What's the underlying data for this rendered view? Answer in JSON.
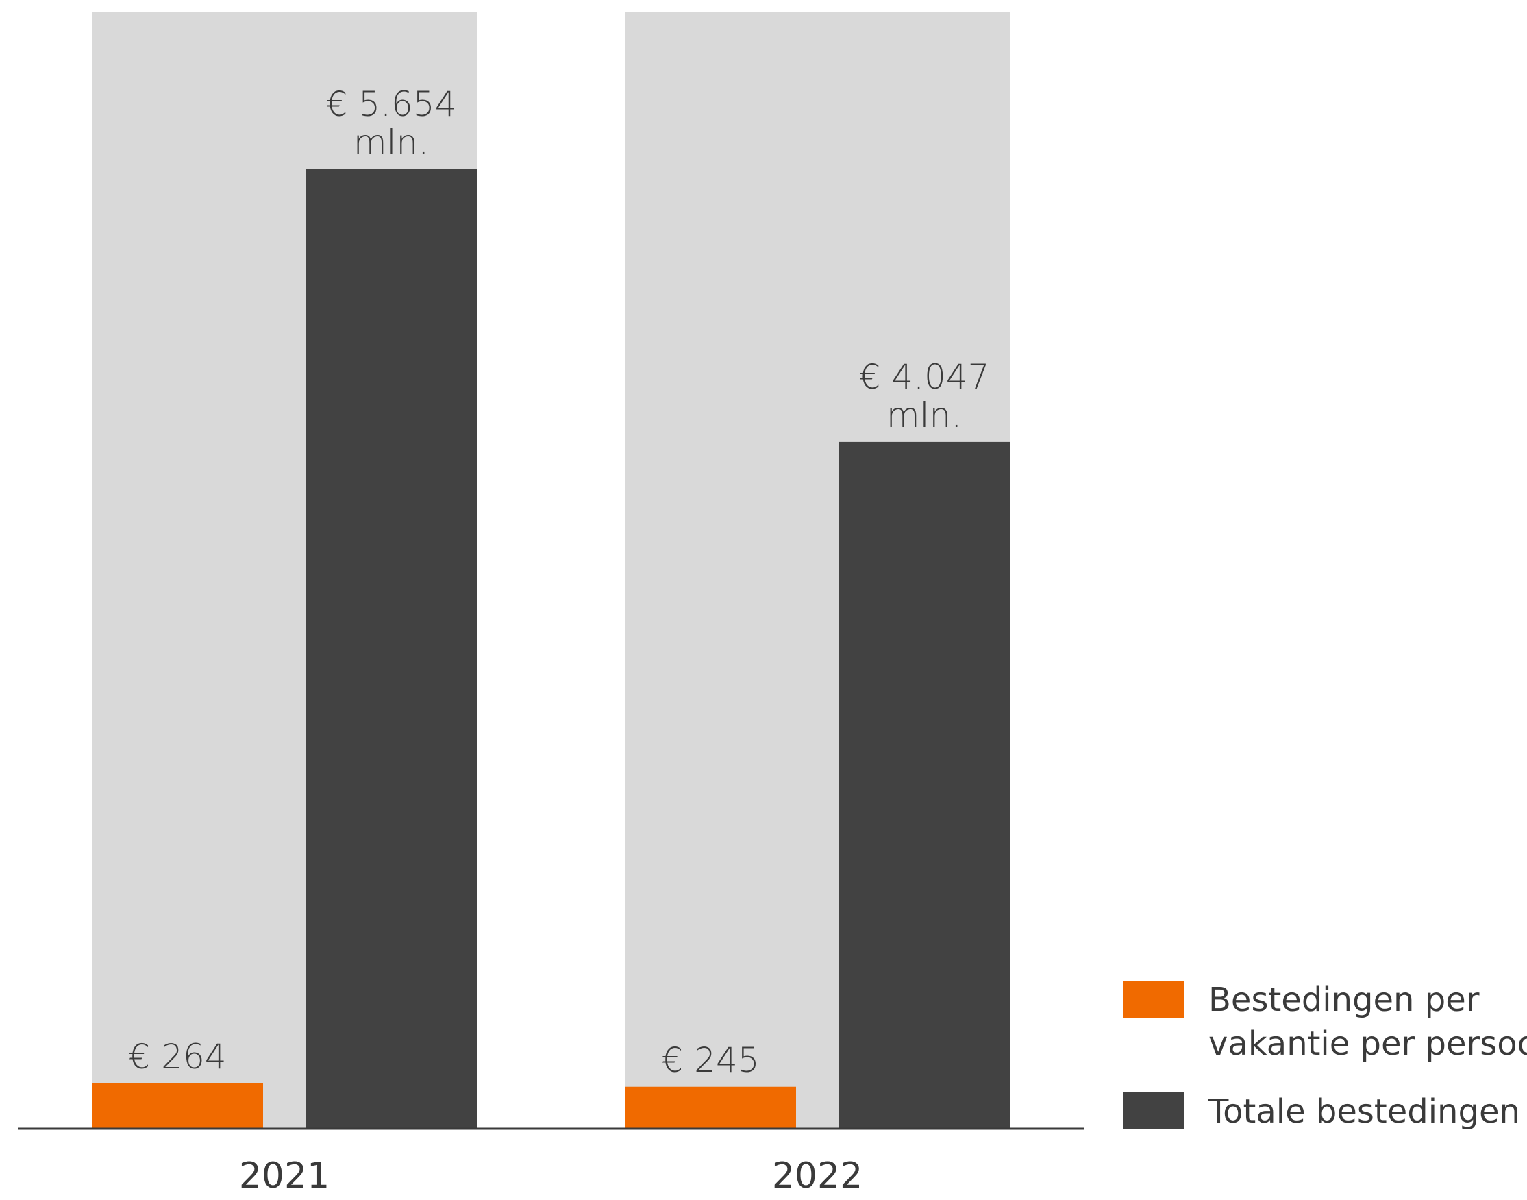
{
  "chart_data": {
    "type": "bar",
    "categories": [
      "2021",
      "2022"
    ],
    "series": [
      {
        "name": "Bestedingen per vakantie per persoon",
        "values": [
          264,
          245
        ],
        "labels": [
          "€ 264",
          "€ 245"
        ],
        "color": "#f06a00"
      },
      {
        "name": "Totale bestedingen",
        "values": [
          5654,
          4047
        ],
        "labels": [
          [
            "€ 5.654",
            "mln."
          ],
          [
            "€ 4.047",
            "mln."
          ]
        ],
        "color": "#424242"
      }
    ],
    "background_color": "#d9d9d9",
    "title": "",
    "xlabel": "",
    "ylabel": "",
    "legend_position": "bottom-right",
    "legend": {
      "entries": [
        {
          "lines": [
            "Bestedingen per",
            "vakantie per persoon"
          ],
          "color": "#f06a00"
        },
        {
          "lines": [
            "Totale bestedingen"
          ],
          "color": "#424242"
        }
      ]
    },
    "grid": false
  }
}
